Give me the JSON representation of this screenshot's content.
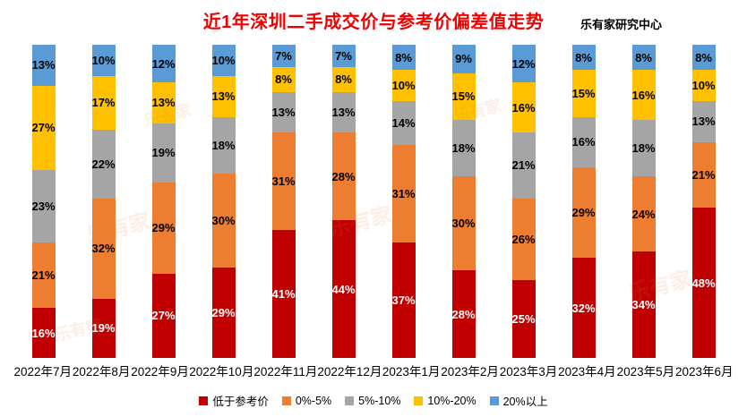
{
  "watermark": "乐有家",
  "chart_data": {
    "type": "bar",
    "stacked": true,
    "orientation": "vertical",
    "title": "近1年深圳二手成交价与参考价偏差值走势",
    "source_label": "乐有家研究中心",
    "categories": [
      "2022年7月",
      "2022年8月",
      "2022年9月",
      "2022年10月",
      "2022年11月",
      "2022年12月",
      "2023年1月",
      "2023年2月",
      "2023年3月",
      "2023年4月",
      "2023年5月",
      "2023年6月"
    ],
    "series": [
      {
        "name": "低于参考价",
        "color": "#C00000",
        "label_color": "#FFFFFF",
        "values": [
          16,
          19,
          27,
          29,
          41,
          44,
          37,
          28,
          25,
          32,
          34,
          48
        ]
      },
      {
        "name": "0%-5%",
        "color": "#ED7D31",
        "label_color": "#000000",
        "values": [
          21,
          32,
          29,
          30,
          31,
          28,
          31,
          30,
          26,
          29,
          24,
          21
        ]
      },
      {
        "name": "5%-10%",
        "color": "#A5A5A5",
        "label_color": "#000000",
        "values": [
          23,
          22,
          19,
          18,
          13,
          13,
          14,
          18,
          21,
          16,
          18,
          13
        ]
      },
      {
        "name": "10%-20%",
        "color": "#FFC000",
        "label_color": "#000000",
        "values": [
          27,
          17,
          13,
          13,
          8,
          8,
          10,
          15,
          16,
          15,
          16,
          10
        ]
      },
      {
        "name": "20%以上",
        "color": "#5B9BD5",
        "label_color": "#000000",
        "values": [
          13,
          10,
          12,
          10,
          7,
          7,
          8,
          9,
          12,
          8,
          8,
          8
        ]
      }
    ],
    "value_suffix": "%",
    "data_labels": true,
    "ylim": [
      0,
      100
    ],
    "grid": false,
    "legend_position": "bottom",
    "title_color": "#f00000"
  }
}
